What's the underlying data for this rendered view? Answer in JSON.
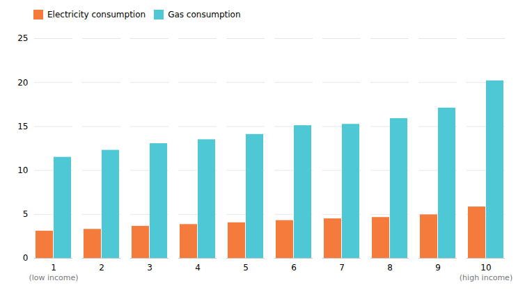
{
  "chart_data": {
    "type": "bar",
    "categories": [
      "1",
      "2",
      "3",
      "4",
      "5",
      "6",
      "7",
      "8",
      "9",
      "10"
    ],
    "series": [
      {
        "name": "Electricity consumption",
        "color": "#f47b3b",
        "values": [
          3.1,
          3.3,
          3.65,
          3.85,
          4.05,
          4.3,
          4.5,
          4.65,
          4.95,
          5.85
        ]
      },
      {
        "name": "Gas consumption",
        "color": "#4dc8d4",
        "values": [
          11.5,
          12.3,
          13.05,
          13.5,
          14.1,
          15.1,
          15.25,
          15.9,
          17.1,
          20.2
        ]
      }
    ],
    "ylim": [
      0,
      25
    ],
    "yticks": [
      0,
      5,
      10,
      15,
      20,
      25
    ],
    "grid": true,
    "legend": "upper left",
    "annotations": [
      {
        "x": "1",
        "text": "(low income)"
      },
      {
        "x": "10",
        "text": "(high income)"
      }
    ]
  }
}
